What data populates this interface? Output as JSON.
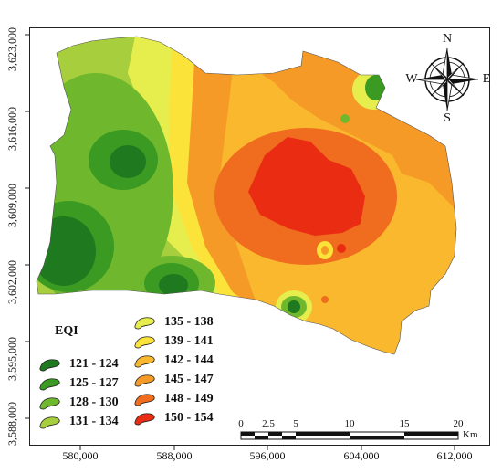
{
  "map": {
    "y_ticks": [
      "3,623,000",
      "3,616,000",
      "3,609,000",
      "3,602,000",
      "3,595,000",
      "3,588,000"
    ],
    "x_ticks": [
      "580,000",
      "588,000",
      "596,000",
      "604,000",
      "612,000"
    ]
  },
  "legend": {
    "title": "EQI",
    "classes": [
      {
        "label": "121 - 124",
        "color": "#1f7a1f"
      },
      {
        "label": "125 - 127",
        "color": "#3a9a22"
      },
      {
        "label": "128 - 130",
        "color": "#6fb82e"
      },
      {
        "label": "131 - 134",
        "color": "#a7cf3d"
      },
      {
        "label": "135 - 138",
        "color": "#e6ee4e"
      },
      {
        "label": "139 - 141",
        "color": "#fbe33a"
      },
      {
        "label": "142 - 144",
        "color": "#f9b82d"
      },
      {
        "label": "145 - 147",
        "color": "#f59a26"
      },
      {
        "label": "148 - 149",
        "color": "#f06c1e"
      },
      {
        "label": "150 - 154",
        "color": "#ea2c12"
      }
    ]
  },
  "scale_bar": {
    "labels": [
      "0",
      "2.5",
      "5",
      "10",
      "15",
      "20"
    ],
    "unit": "Km"
  },
  "compass": {
    "n": "N",
    "s": "S",
    "e": "E",
    "w": "W"
  }
}
